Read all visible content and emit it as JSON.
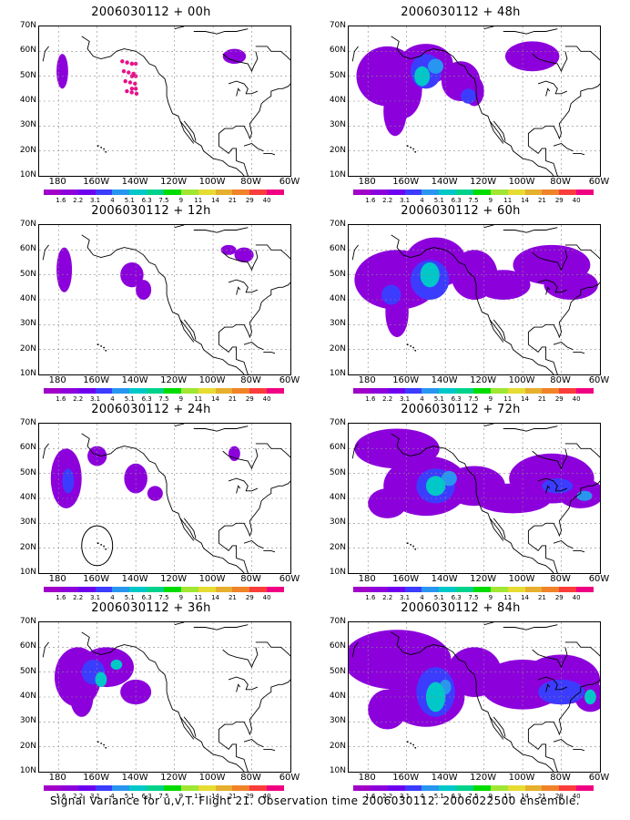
{
  "panels": [
    {
      "title": "2006030112 + 00h",
      "lead": "00h",
      "col": 0,
      "row": 0
    },
    {
      "title": "2006030112 + 12h",
      "lead": "12h",
      "col": 0,
      "row": 1
    },
    {
      "title": "2006030112 + 24h",
      "lead": "24h",
      "col": 0,
      "row": 2
    },
    {
      "title": "2006030112 + 36h",
      "lead": "36h",
      "col": 0,
      "row": 3
    },
    {
      "title": "2006030112 + 48h",
      "lead": "48h",
      "col": 1,
      "row": 0
    },
    {
      "title": "2006030112 + 60h",
      "lead": "60h",
      "col": 1,
      "row": 1
    },
    {
      "title": "2006030112 + 72h",
      "lead": "72h",
      "col": 1,
      "row": 2
    },
    {
      "title": "2006030112 + 84h",
      "lead": "84h",
      "col": 1,
      "row": 3
    }
  ],
  "lat_labels": [
    "70N",
    "60N",
    "50N",
    "40N",
    "30N",
    "20N",
    "10N"
  ],
  "lon_labels": [
    "180",
    "160W",
    "140W",
    "120W",
    "100W",
    "80W",
    "60W"
  ],
  "colorbar": {
    "labels": [
      "1.6",
      "2.2",
      "3.1",
      "4",
      "5.1",
      "6.3",
      "7.5",
      "9",
      "11",
      "14",
      "21",
      "29",
      "40"
    ],
    "colors": [
      "#a000c8",
      "#8c00dc",
      "#6e00f0",
      "#3c3cff",
      "#2896f0",
      "#00c8c8",
      "#00d28c",
      "#00dc00",
      "#a0e632",
      "#e6dc32",
      "#e6af2d",
      "#f08228",
      "#fa3c3c",
      "#f00082"
    ]
  },
  "caption": "Signal Variance for u,v,T. Flight 21. Observation time 2006030112. 2006022500 ensemble."
}
